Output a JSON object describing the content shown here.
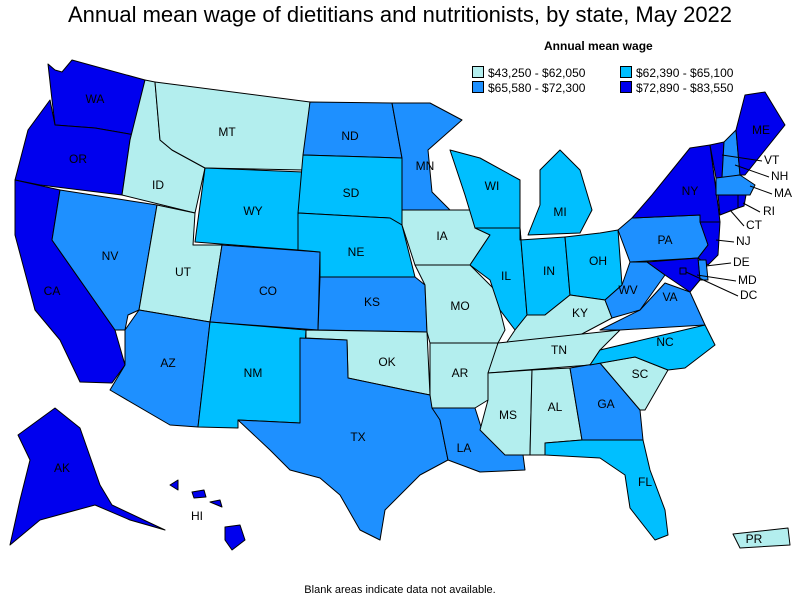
{
  "title": "Annual mean wage of dietitians and nutritionists, by state, May 2022",
  "legend": {
    "title": "Annual mean wage",
    "items": [
      {
        "label": "$43,250 - $62,050",
        "color": "#b3eeee"
      },
      {
        "label": "$62,390 - $65,100",
        "color": "#00bfff"
      },
      {
        "label": "$65,580 - $72,300",
        "color": "#1e90ff"
      },
      {
        "label": "$72,890 - $83,550",
        "color": "#0000ee"
      }
    ]
  },
  "footnote": "Blank areas indicate data not available.",
  "states": {
    "WA": {
      "label": "WA",
      "tier": 3
    },
    "OR": {
      "label": "OR",
      "tier": 3
    },
    "CA": {
      "label": "CA",
      "tier": 3
    },
    "ID": {
      "label": "ID",
      "tier": 0
    },
    "NV": {
      "label": "NV",
      "tier": 2
    },
    "MT": {
      "label": "MT",
      "tier": 0
    },
    "WY": {
      "label": "WY",
      "tier": 1
    },
    "UT": {
      "label": "UT",
      "tier": 0
    },
    "AZ": {
      "label": "AZ",
      "tier": 2
    },
    "CO": {
      "label": "CO",
      "tier": 2
    },
    "NM": {
      "label": "NM",
      "tier": 1
    },
    "ND": {
      "label": "ND",
      "tier": 2
    },
    "SD": {
      "label": "SD",
      "tier": 1
    },
    "NE": {
      "label": "NE",
      "tier": 1
    },
    "KS": {
      "label": "KS",
      "tier": 2
    },
    "OK": {
      "label": "OK",
      "tier": 0
    },
    "TX": {
      "label": "TX",
      "tier": 2
    },
    "MN": {
      "label": "MN",
      "tier": 2
    },
    "IA": {
      "label": "IA",
      "tier": 0
    },
    "MO": {
      "label": "MO",
      "tier": 0
    },
    "AR": {
      "label": "AR",
      "tier": 0
    },
    "LA": {
      "label": "LA",
      "tier": 2
    },
    "WI": {
      "label": "WI",
      "tier": 1
    },
    "IL": {
      "label": "IL",
      "tier": 1
    },
    "MI": {
      "label": "MI",
      "tier": 1
    },
    "IN": {
      "label": "IN",
      "tier": 1
    },
    "OH": {
      "label": "OH",
      "tier": 1
    },
    "KY": {
      "label": "KY",
      "tier": 0
    },
    "TN": {
      "label": "TN",
      "tier": 0
    },
    "MS": {
      "label": "MS",
      "tier": 0
    },
    "AL": {
      "label": "AL",
      "tier": 0
    },
    "GA": {
      "label": "GA",
      "tier": 2
    },
    "FL": {
      "label": "FL",
      "tier": 1
    },
    "SC": {
      "label": "SC",
      "tier": 0
    },
    "NC": {
      "label": "NC",
      "tier": 1
    },
    "VA": {
      "label": "VA",
      "tier": 2
    },
    "WV": {
      "label": "WV",
      "tier": 2
    },
    "PA": {
      "label": "PA",
      "tier": 2
    },
    "NY": {
      "label": "NY",
      "tier": 3
    },
    "ME": {
      "label": "ME",
      "tier": 3
    },
    "VT": {
      "label": "VT",
      "tier": 3
    },
    "NH": {
      "label": "NH",
      "tier": 2
    },
    "MA": {
      "label": "MA",
      "tier": 2
    },
    "RI": {
      "label": "RI",
      "tier": 3
    },
    "CT": {
      "label": "CT",
      "tier": 3
    },
    "NJ": {
      "label": "NJ",
      "tier": 3
    },
    "DE": {
      "label": "DE",
      "tier": 2
    },
    "MD": {
      "label": "MD",
      "tier": 3
    },
    "DC": {
      "label": "DC",
      "tier": 3
    },
    "AK": {
      "label": "AK",
      "tier": 3
    },
    "HI": {
      "label": "HI",
      "tier": 3
    },
    "PR": {
      "label": "PR",
      "tier": 0
    }
  }
}
